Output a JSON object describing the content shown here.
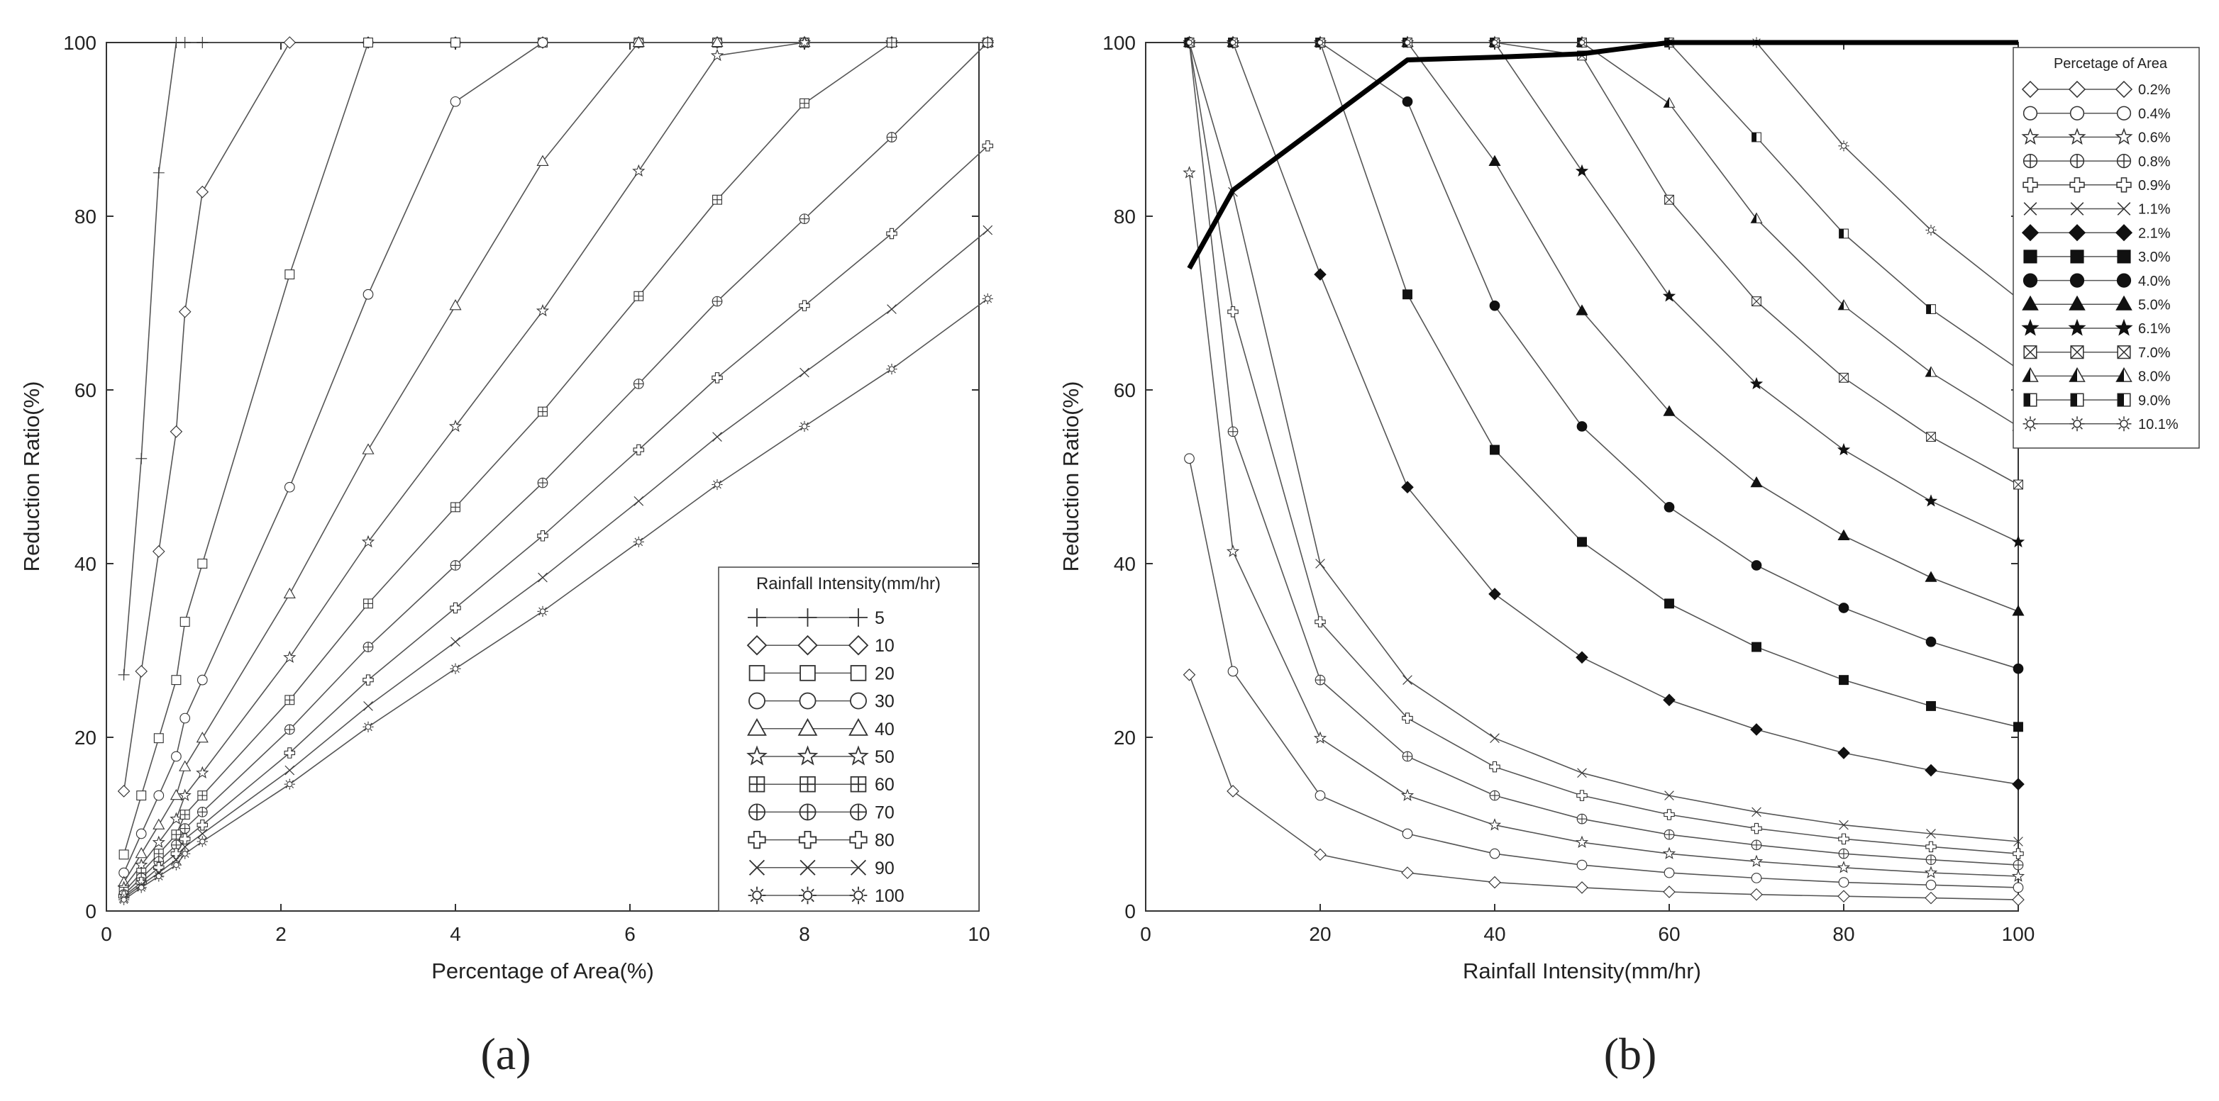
{
  "chart_data": [
    {
      "type": "line",
      "panel_label": "(a)",
      "xlabel": "Percentage of Area(%)",
      "ylabel": "Reduction Ratio(%)",
      "xlim": [
        0,
        10
      ],
      "ylim": [
        0,
        100
      ],
      "xticks": [
        "0",
        "2",
        "4",
        "6",
        "8",
        "10"
      ],
      "yticks": [
        "0",
        "20",
        "40",
        "60",
        "80",
        "100"
      ],
      "grid": false,
      "legend_position": "bottom-right",
      "legend_title": "Rainfall Intensity(mm/hr)",
      "x": [
        0.2,
        0.4,
        0.6,
        0.8,
        0.9,
        1.1,
        2.1,
        3.0,
        4.0,
        5.0,
        6.1,
        7.0,
        8.0,
        9.0,
        10.1
      ],
      "series": [
        {
          "name": "5",
          "marker": "plus",
          "values": [
            27.2,
            52.1,
            85,
            100,
            100,
            100,
            100,
            100,
            100,
            100,
            100,
            100,
            100,
            100,
            100
          ]
        },
        {
          "name": "10",
          "marker": "diamond",
          "values": [
            13.8,
            27.6,
            41.4,
            55.2,
            69,
            82.8,
            100,
            100,
            100,
            100,
            100,
            100,
            100,
            100,
            100
          ]
        },
        {
          "name": "20",
          "marker": "square",
          "values": [
            6.5,
            13.3,
            19.9,
            26.6,
            33.3,
            40,
            73.3,
            100,
            100,
            100,
            100,
            100,
            100,
            100,
            100
          ]
        },
        {
          "name": "30",
          "marker": "circle",
          "values": [
            4.4,
            8.9,
            13.3,
            17.8,
            22.2,
            26.6,
            48.8,
            71,
            93.2,
            100,
            100,
            100,
            100,
            100,
            100
          ]
        },
        {
          "name": "40",
          "marker": "triangle",
          "values": [
            3.3,
            6.6,
            9.9,
            13.3,
            16.6,
            19.9,
            36.5,
            53.1,
            69.7,
            86.3,
            100,
            100,
            100,
            100,
            100
          ]
        },
        {
          "name": "50",
          "marker": "star",
          "values": [
            2.7,
            5.3,
            7.9,
            10.6,
            13.3,
            15.9,
            29.2,
            42.5,
            55.8,
            69.1,
            85.2,
            98.5,
            100,
            100,
            100
          ]
        },
        {
          "name": "60",
          "marker": "square-plus",
          "values": [
            2.2,
            4.4,
            6.6,
            8.8,
            11.1,
            13.3,
            24.3,
            35.4,
            46.5,
            57.5,
            70.8,
            81.9,
            93,
            100,
            100
          ]
        },
        {
          "name": "70",
          "marker": "circle-plus",
          "values": [
            1.9,
            3.8,
            5.7,
            7.6,
            9.5,
            11.4,
            20.9,
            30.4,
            39.8,
            49.3,
            60.7,
            70.2,
            79.7,
            89.1,
            100
          ]
        },
        {
          "name": "80",
          "marker": "cross-outline",
          "values": [
            1.7,
            3.3,
            5,
            6.6,
            8.3,
            9.9,
            18.2,
            26.6,
            34.9,
            43.2,
            53.1,
            61.4,
            69.7,
            78,
            88.1
          ]
        },
        {
          "name": "90",
          "marker": "x",
          "values": [
            1.5,
            3,
            4.4,
            5.9,
            7.4,
            8.9,
            16.2,
            23.6,
            31,
            38.4,
            47.2,
            54.6,
            62,
            69.3,
            78.4
          ]
        },
        {
          "name": "100",
          "marker": "sun",
          "values": [
            1.3,
            2.7,
            4,
            5.3,
            6.6,
            8,
            14.6,
            21.2,
            27.9,
            34.5,
            42.5,
            49.1,
            55.8,
            62.4,
            70.5
          ]
        }
      ]
    },
    {
      "type": "line",
      "panel_label": "(b)",
      "xlabel": "Rainfall Intensity(mm/hr)",
      "ylabel": "Reduction Ratio(%)",
      "xlim": [
        0,
        100
      ],
      "ylim": [
        0,
        100
      ],
      "xticks": [
        "0",
        "20",
        "40",
        "60",
        "80",
        "100"
      ],
      "yticks": [
        "0",
        "20",
        "40",
        "60",
        "80",
        "100"
      ],
      "grid": false,
      "legend_position": "top-right",
      "legend_title": "Percetage of Area",
      "x": [
        5,
        10,
        20,
        30,
        40,
        50,
        60,
        70,
        80,
        90,
        100
      ],
      "series": [
        {
          "name": "0.2%",
          "marker": "diamond",
          "values": [
            27.2,
            13.8,
            6.5,
            4.4,
            3.3,
            2.7,
            2.2,
            1.9,
            1.7,
            1.5,
            1.3
          ]
        },
        {
          "name": "0.4%",
          "marker": "circle",
          "values": [
            52.1,
            27.6,
            13.3,
            8.9,
            6.6,
            5.3,
            4.4,
            3.8,
            3.3,
            3,
            2.7
          ]
        },
        {
          "name": "0.6%",
          "marker": "star",
          "values": [
            85,
            41.4,
            19.9,
            13.3,
            9.9,
            7.9,
            6.6,
            5.7,
            5,
            4.4,
            4
          ]
        },
        {
          "name": "0.8%",
          "marker": "circle-plus",
          "values": [
            100,
            55.2,
            26.6,
            17.8,
            13.3,
            10.6,
            8.8,
            7.6,
            6.6,
            5.9,
            5.3
          ]
        },
        {
          "name": "0.9%",
          "marker": "cross-outline",
          "values": [
            100,
            69,
            33.3,
            22.2,
            16.6,
            13.3,
            11.1,
            9.5,
            8.3,
            7.4,
            6.6
          ]
        },
        {
          "name": "1.1%",
          "marker": "x",
          "values": [
            100,
            82.8,
            40,
            26.6,
            19.9,
            15.9,
            13.3,
            11.4,
            9.9,
            8.9,
            8
          ]
        },
        {
          "name": "2.1%",
          "marker": "diamond-filled",
          "values": [
            100,
            100,
            73.3,
            48.8,
            36.5,
            29.2,
            24.3,
            20.9,
            18.2,
            16.2,
            14.6
          ]
        },
        {
          "name": "3.0%",
          "marker": "square-filled",
          "values": [
            100,
            100,
            100,
            71,
            53.1,
            42.5,
            35.4,
            30.4,
            26.6,
            23.6,
            21.2
          ]
        },
        {
          "name": "4.0%",
          "marker": "circle-filled",
          "values": [
            100,
            100,
            100,
            93.2,
            69.7,
            55.8,
            46.5,
            39.8,
            34.9,
            31,
            27.9
          ]
        },
        {
          "name": "5.0%",
          "marker": "triangle-filled",
          "values": [
            100,
            100,
            100,
            100,
            86.3,
            69.1,
            57.5,
            49.3,
            43.2,
            38.4,
            34.5
          ]
        },
        {
          "name": "6.1%",
          "marker": "star-filled",
          "values": [
            100,
            100,
            100,
            100,
            100,
            85.2,
            70.8,
            60.7,
            53.1,
            47.2,
            42.5
          ]
        },
        {
          "name": "7.0%",
          "marker": "square-x",
          "values": [
            100,
            100,
            100,
            100,
            100,
            98.5,
            81.9,
            70.2,
            61.4,
            54.6,
            49.1
          ]
        },
        {
          "name": "8.0%",
          "marker": "triangle-half",
          "values": [
            100,
            100,
            100,
            100,
            100,
            100,
            93,
            79.7,
            69.7,
            62,
            55.8
          ]
        },
        {
          "name": "9.0%",
          "marker": "square-half",
          "values": [
            100,
            100,
            100,
            100,
            100,
            100,
            100,
            89.1,
            78,
            69.3,
            62.4
          ]
        },
        {
          "name": "10.1%",
          "marker": "sun",
          "values": [
            100,
            100,
            100,
            100,
            100,
            100,
            100,
            100,
            88.1,
            78.4,
            70.5
          ]
        }
      ],
      "thick_line": {
        "x": [
          5,
          10,
          20,
          30,
          40,
          50,
          60,
          70,
          80,
          90,
          100
        ],
        "values": [
          74,
          83,
          90.5,
          98,
          98.3,
          98.7,
          100,
          100,
          100,
          100,
          100
        ]
      }
    }
  ]
}
